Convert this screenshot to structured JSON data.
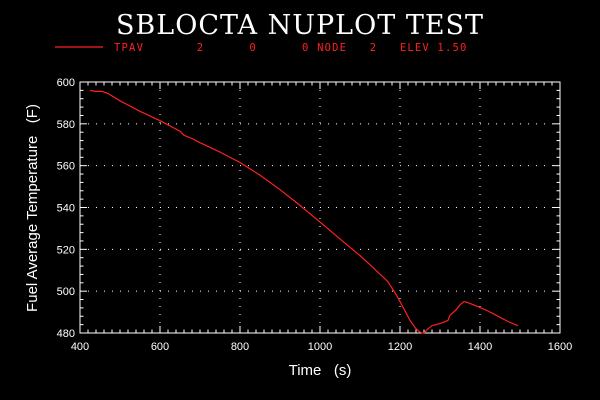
{
  "chart_data": {
    "type": "line",
    "title": "SBLOCTA NUPLOT TEST",
    "xlabel": "Time   (s)",
    "ylabel": "Fuel Average Temperature   (F)",
    "xlim": [
      400,
      1600
    ],
    "ylim": [
      480,
      600
    ],
    "xticks": [
      400,
      600,
      800,
      1000,
      1200,
      1400,
      1600
    ],
    "yticks": [
      480,
      500,
      520,
      540,
      560,
      580,
      600
    ],
    "xtick_labels": [
      "400",
      "600",
      "800",
      "1000",
      "1200",
      "1400",
      "1600"
    ],
    "ytick_labels": [
      "480",
      "500",
      "520",
      "540",
      "560",
      "580",
      "600"
    ],
    "grid": true,
    "legend_position": "top",
    "colors": {
      "background": "#000000",
      "foreground": "#ffffff",
      "series": "#ff2020"
    },
    "series": [
      {
        "name": "TPAV       2      0      0 NODE   2   ELEV 1.50",
        "color": "#ff2020",
        "x": [
          425,
          440,
          455,
          470,
          500,
          550,
          600,
          630,
          650,
          660,
          680,
          700,
          750,
          800,
          850,
          900,
          950,
          1000,
          1050,
          1100,
          1140,
          1170,
          1190,
          1210,
          1225,
          1240,
          1250,
          1255,
          1260,
          1270,
          1280,
          1300,
          1320,
          1325,
          1340,
          1350,
          1360,
          1370,
          1390,
          1420,
          1450,
          1470,
          1495
        ],
        "y": [
          596,
          595.5,
          595.5,
          594.5,
          591,
          586,
          581.5,
          578.5,
          576.5,
          574.5,
          573,
          571,
          566.5,
          561.5,
          555.5,
          548.5,
          541,
          533,
          525,
          517,
          510,
          504.5,
          498.5,
          491.5,
          486,
          482,
          480.5,
          480,
          480,
          482,
          483.5,
          484.5,
          486,
          488.5,
          491,
          493.5,
          495,
          494.5,
          493,
          490.5,
          487.5,
          485.5,
          483.5
        ]
      }
    ]
  }
}
